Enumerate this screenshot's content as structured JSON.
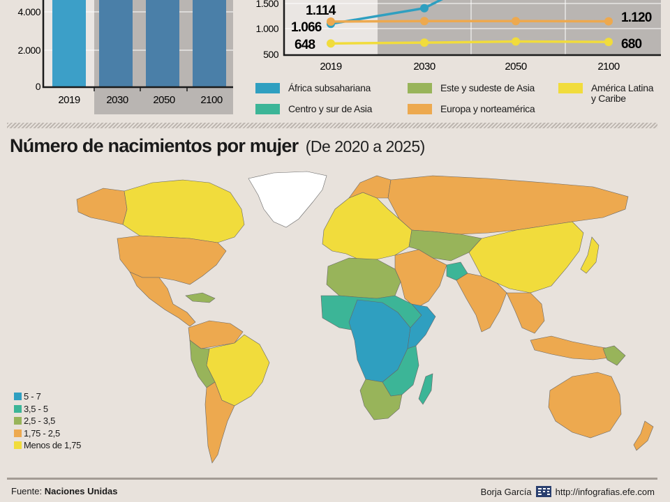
{
  "colors": {
    "africa": "#2f9fc0",
    "centro": "#3cb597",
    "este": "#98b45a",
    "europa": "#eda94f",
    "latam": "#f1dc3c",
    "bars_dark": "#4a7fa8",
    "bars_light": "#3c9fc8",
    "ocean": "#e8e2dc",
    "greenland": "#ffffff",
    "plot_bg": "#eae6e3",
    "plot_shade": "#b9b5b2"
  },
  "bar_chart": {
    "y_ticks": [
      "0",
      "2.000",
      "4.000"
    ],
    "x_labels": [
      "2019",
      "2030",
      "2050",
      "2100"
    ]
  },
  "chart_data": {
    "type": "line",
    "x": [
      "2019",
      "2030",
      "2050",
      "2100"
    ],
    "y_ticks": [
      "500",
      "1.000",
      "1.500"
    ],
    "series": [
      {
        "key": "africa",
        "values": [
          1066,
          1400,
          null,
          null
        ]
      },
      {
        "key": "europa",
        "values": [
          1114,
          1125,
          1125,
          1120
        ]
      },
      {
        "key": "latam",
        "values": [
          648,
          665,
          690,
          680
        ]
      }
    ],
    "labels": {
      "left_top": "1.114",
      "left_mid": "1.066",
      "left_bottom": "648",
      "right_top": "1.120",
      "right_bottom": "680"
    }
  },
  "legend": [
    {
      "key": "africa",
      "label": "África subsahariana"
    },
    {
      "key": "este",
      "label": "Este y sudeste de Asia"
    },
    {
      "key": "latam",
      "label": "América Latina\ny Caribe"
    },
    {
      "key": "centro",
      "label": "Centro y sur de Asia"
    },
    {
      "key": "europa",
      "label": "Europa y norteamérica"
    }
  ],
  "title": {
    "main": "Número de nacimientos por mujer",
    "sub": "(De 2020 a 2025)"
  },
  "map_legend": [
    {
      "key": "africa",
      "label": "5 - 7"
    },
    {
      "key": "centro",
      "label": "3,5 - 5"
    },
    {
      "key": "este",
      "label": "2,5 - 3,5"
    },
    {
      "key": "europa",
      "label": "1,75 - 2,5"
    },
    {
      "key": "latam",
      "label": "Menos de 1,75"
    }
  ],
  "footer": {
    "source_label": "Fuente:",
    "source_value": "Naciones Unidas",
    "author": "Borja García",
    "url": "http://infografias.efe.com"
  }
}
